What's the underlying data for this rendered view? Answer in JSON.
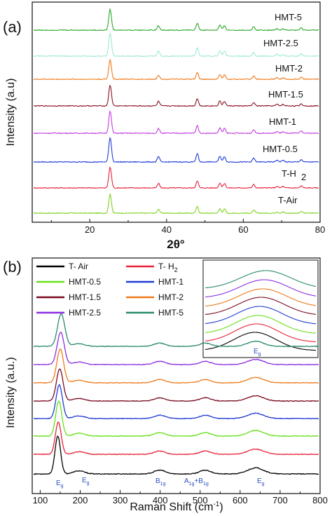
{
  "chart_data": [
    {
      "type": "line",
      "panel": "(a)",
      "xlabel": "2θ°",
      "ylabel": "Intensity (a.u)",
      "xlim": [
        5,
        80
      ],
      "xticks": [
        20,
        40,
        60,
        80
      ],
      "ticks_text": [
        "20",
        "40",
        "60",
        "80"
      ],
      "peaks_2theta": [
        25.3,
        37.9,
        48.0,
        53.9,
        55.1,
        62.7,
        68.8,
        70.3,
        75.1
      ],
      "peak_rel_intensity": [
        1.0,
        0.22,
        0.35,
        0.24,
        0.22,
        0.16,
        0.08,
        0.07,
        0.1
      ],
      "series": [
        {
          "name": "T-Air",
          "color": "#7ed321",
          "scale": 0.72
        },
        {
          "name": "T-H2",
          "color": "#e8223a",
          "scale": 0.8
        },
        {
          "name": "HMT-0.5",
          "color": "#1f3bd6",
          "scale": 0.95
        },
        {
          "name": "HMT-1",
          "color": "#c43be0",
          "scale": 0.85
        },
        {
          "name": "HMT-1.5",
          "color": "#8a1020",
          "scale": 0.8
        },
        {
          "name": "HMT-2",
          "color": "#ef7a1a",
          "scale": 0.75
        },
        {
          "name": "HMT-2.5",
          "color": "#9fe8d6",
          "scale": 0.9
        },
        {
          "name": "HMT-5",
          "color": "#2ca82c",
          "scale": 0.8
        }
      ],
      "labels_text": [
        "T-Air",
        "T-H",
        "HMT-0.5",
        "HMT-1",
        "HMT-1.5",
        "HMT-2",
        "HMT-2.5",
        "HMT-5"
      ],
      "subscript_text": "2"
    },
    {
      "type": "line",
      "panel": "(b)",
      "xlabel": "Raman Shift (cm",
      "xlabel_sup": "-1",
      "xlabel_end": ")",
      "ylabel": "Intensity (a.u.)",
      "xlim": [
        80,
        800
      ],
      "xticks": [
        100,
        200,
        300,
        400,
        500,
        600,
        700,
        800
      ],
      "ticks_text": [
        "100",
        "200",
        "300",
        "400",
        "500",
        "600",
        "700",
        "800"
      ],
      "bands_cm": [
        144,
        197,
        399,
        513,
        639
      ],
      "band_rel_intensity": [
        1.0,
        0.08,
        0.1,
        0.1,
        0.16
      ],
      "series": [
        {
          "name": "T- Air",
          "sub": "",
          "color": "#000000"
        },
        {
          "name": "T- H",
          "sub": "2",
          "color": "#e8223a"
        },
        {
          "name": "HMT-0.5",
          "sub": "",
          "color": "#66e01a"
        },
        {
          "name": "HMT-1",
          "sub": "",
          "color": "#1f3bd6"
        },
        {
          "name": "HMT-1.5",
          "sub": "",
          "color": "#7a0a20"
        },
        {
          "name": "HMT-2",
          "sub": "",
          "color": "#ef7a1a"
        },
        {
          "name": "HMT-2.5",
          "sub": "",
          "color": "#8b2fe0"
        },
        {
          "name": "HMT-5",
          "sub": "",
          "color": "#2a8a6a"
        }
      ],
      "mode_labels": [
        {
          "main": "E",
          "sub": "g"
        },
        {
          "main": "E",
          "sub": "g"
        },
        {
          "main": "B",
          "sub": "1g"
        },
        {
          "main": "A",
          "sub": "1g",
          "main2": "+B",
          "sub2": "1g"
        },
        {
          "main": "E",
          "sub": "g"
        }
      ],
      "inset_label": {
        "main": "E",
        "sub": "g"
      }
    }
  ]
}
